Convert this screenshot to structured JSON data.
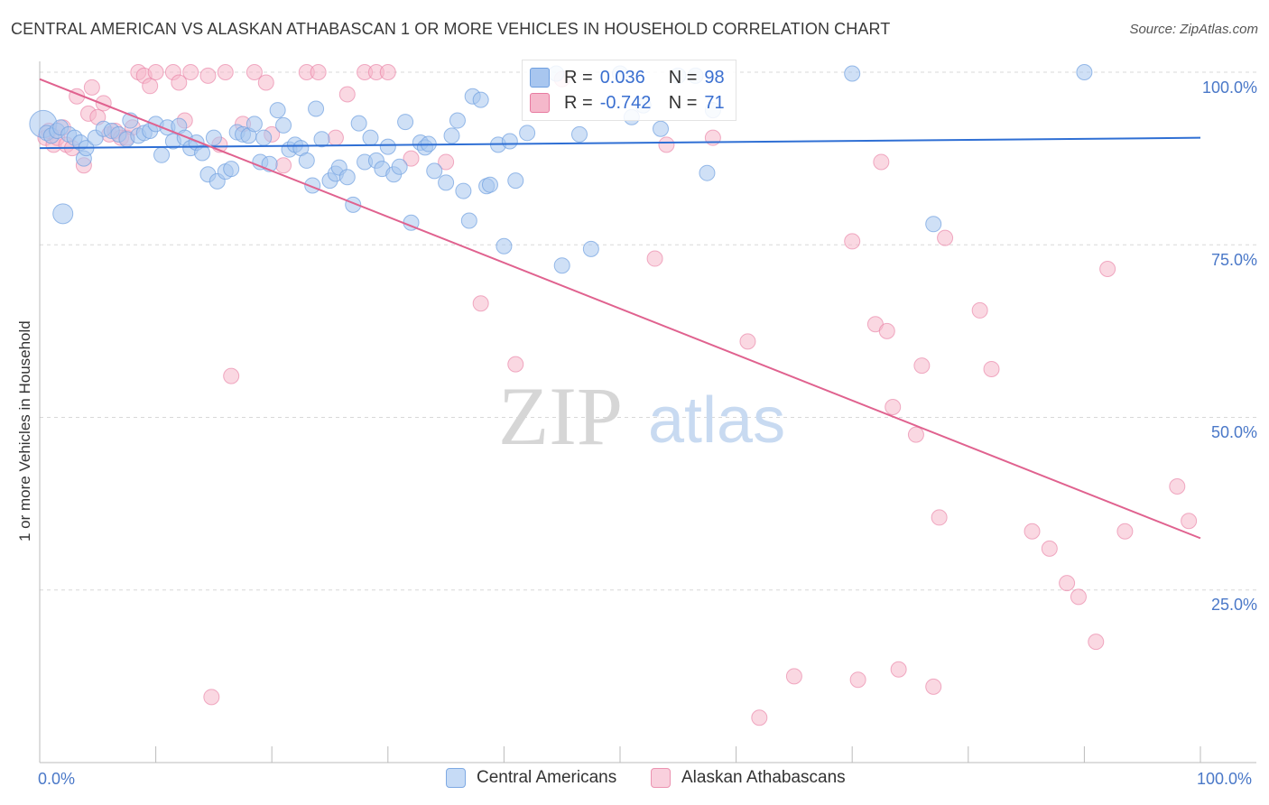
{
  "title": "CENTRAL AMERICAN VS ALASKAN ATHABASCAN 1 OR MORE VEHICLES IN HOUSEHOLD CORRELATION CHART",
  "source": "Source: ZipAtlas.com",
  "watermark": {
    "zip": "ZIP",
    "atlas": "atlas"
  },
  "legend_top": {
    "rows": [
      {
        "r_label": "R =",
        "r_value": "0.036",
        "n_label": "N =",
        "n_value": "98",
        "color": "#a8c6ef"
      },
      {
        "r_label": "R =",
        "r_value": "-0.742",
        "n_label": "N =",
        "n_value": "71",
        "color": "#f5b8cb"
      }
    ]
  },
  "legend_bottom": {
    "items": [
      {
        "label": "Central Americans",
        "color": "#a8c6ef"
      },
      {
        "label": "Alaskan Athabascans",
        "color": "#f5b8cb"
      }
    ]
  },
  "chart_data": {
    "type": "scatter",
    "title": "CENTRAL AMERICAN VS ALASKAN ATHABASCAN 1 OR MORE VEHICLES IN HOUSEHOLD CORRELATION CHART",
    "xlabel": "",
    "ylabel": "1 or more Vehicles in Household",
    "x_ticklabels": [
      "0.0%",
      "100.0%"
    ],
    "y_ticklabels": [
      "100.0%",
      "75.0%",
      "50.0%",
      "25.0%"
    ],
    "xlim": [
      0,
      100
    ],
    "ylim": [
      0,
      100
    ],
    "grid": "horizontal dashed",
    "legend_placement": "bottom-center",
    "series": [
      {
        "name": "Central Americans",
        "color": "#6f9fe0",
        "fill": "#a8c6ef",
        "trend": {
          "x0": 0,
          "y0": 89.0,
          "x1": 100,
          "y1": 90.5
        },
        "points": [
          [
            0.3,
            92.5
          ],
          [
            0.6,
            91.2
          ],
          [
            1.0,
            90.8
          ],
          [
            1.5,
            91.5
          ],
          [
            1.8,
            92.0
          ],
          [
            2.0,
            79.5
          ],
          [
            2.5,
            91.0
          ],
          [
            3.0,
            90.5
          ],
          [
            3.5,
            89.8
          ],
          [
            3.8,
            87.5
          ],
          [
            4.0,
            89.0
          ],
          [
            4.8,
            90.5
          ],
          [
            5.5,
            91.8
          ],
          [
            6.2,
            91.5
          ],
          [
            6.8,
            91.0
          ],
          [
            7.5,
            90.3
          ],
          [
            7.8,
            93.0
          ],
          [
            8.5,
            90.8
          ],
          [
            9.0,
            91.2
          ],
          [
            9.5,
            91.5
          ],
          [
            10.0,
            92.5
          ],
          [
            10.5,
            88.0
          ],
          [
            11.0,
            92.0
          ],
          [
            11.5,
            90.0
          ],
          [
            12.0,
            92.2
          ],
          [
            12.5,
            90.5
          ],
          [
            13.0,
            89.0
          ],
          [
            13.5,
            89.8
          ],
          [
            14.0,
            88.3
          ],
          [
            14.5,
            85.2
          ],
          [
            15.0,
            90.5
          ],
          [
            15.3,
            84.2
          ],
          [
            16.0,
            85.6
          ],
          [
            16.5,
            86.0
          ],
          [
            17.0,
            91.3
          ],
          [
            17.5,
            91.0
          ],
          [
            18.0,
            90.8
          ],
          [
            18.5,
            92.5
          ],
          [
            19.0,
            87.0
          ],
          [
            19.3,
            90.5
          ],
          [
            19.8,
            86.7
          ],
          [
            20.5,
            94.5
          ],
          [
            21.0,
            92.3
          ],
          [
            21.5,
            88.8
          ],
          [
            22.0,
            89.5
          ],
          [
            22.5,
            89.0
          ],
          [
            23.0,
            87.2
          ],
          [
            23.5,
            83.6
          ],
          [
            23.8,
            94.7
          ],
          [
            24.3,
            90.3
          ],
          [
            25.0,
            84.3
          ],
          [
            25.5,
            85.3
          ],
          [
            25.8,
            86.2
          ],
          [
            26.5,
            84.8
          ],
          [
            27.0,
            80.8
          ],
          [
            27.5,
            92.6
          ],
          [
            28.0,
            87.0
          ],
          [
            28.5,
            90.5
          ],
          [
            29.0,
            87.2
          ],
          [
            29.5,
            86.0
          ],
          [
            30.0,
            89.2
          ],
          [
            30.5,
            85.2
          ],
          [
            31.0,
            86.3
          ],
          [
            31.5,
            92.8
          ],
          [
            32.0,
            78.2
          ],
          [
            32.8,
            89.8
          ],
          [
            33.2,
            89.1
          ],
          [
            33.5,
            89.6
          ],
          [
            34.0,
            85.7
          ],
          [
            35.0,
            84.0
          ],
          [
            35.5,
            90.8
          ],
          [
            36.0,
            93.0
          ],
          [
            36.5,
            82.8
          ],
          [
            37.0,
            78.5
          ],
          [
            37.3,
            96.5
          ],
          [
            38.0,
            96.0
          ],
          [
            38.5,
            83.5
          ],
          [
            38.8,
            83.7
          ],
          [
            39.5,
            89.5
          ],
          [
            40.0,
            74.8
          ],
          [
            40.5,
            90.0
          ],
          [
            41.0,
            84.3
          ],
          [
            42.0,
            91.2
          ],
          [
            43.0,
            99.5
          ],
          [
            44.5,
            99.8
          ],
          [
            45.0,
            72.0
          ],
          [
            46.5,
            91.0
          ],
          [
            47.5,
            74.4
          ],
          [
            50.0,
            99.8
          ],
          [
            51.0,
            93.5
          ],
          [
            52.0,
            95.2
          ],
          [
            53.5,
            91.8
          ],
          [
            55.0,
            99.5
          ],
          [
            56.5,
            99.5
          ],
          [
            57.5,
            85.4
          ],
          [
            58.0,
            94.5
          ],
          [
            70.0,
            99.8
          ],
          [
            77.0,
            78.0
          ],
          [
            90.0,
            100.0
          ]
        ]
      },
      {
        "name": "Alaskan Athabascans",
        "color": "#e87aa0",
        "fill": "#f5b8cb",
        "trend": {
          "x0": 0,
          "y0": 99.0,
          "x1": 100,
          "y1": 32.5
        },
        "points": [
          [
            0.5,
            90.5
          ],
          [
            0.8,
            91.5
          ],
          [
            1.2,
            89.5
          ],
          [
            1.5,
            90.5
          ],
          [
            2.0,
            92.0
          ],
          [
            2.3,
            89.5
          ],
          [
            2.8,
            89.0
          ],
          [
            3.2,
            96.5
          ],
          [
            3.8,
            86.5
          ],
          [
            4.2,
            94.0
          ],
          [
            4.5,
            97.8
          ],
          [
            5.0,
            93.5
          ],
          [
            5.5,
            95.5
          ],
          [
            6.0,
            91.0
          ],
          [
            6.5,
            91.5
          ],
          [
            7.0,
            90.5
          ],
          [
            7.5,
            90.5
          ],
          [
            8.0,
            92.0
          ],
          [
            8.5,
            100.0
          ],
          [
            9.0,
            99.5
          ],
          [
            9.5,
            98.0
          ],
          [
            10.0,
            100.0
          ],
          [
            11.5,
            100.0
          ],
          [
            12.0,
            98.5
          ],
          [
            12.5,
            93.0
          ],
          [
            13.0,
            100.0
          ],
          [
            14.5,
            99.5
          ],
          [
            14.8,
            9.5
          ],
          [
            15.5,
            89.5
          ],
          [
            16.0,
            100.0
          ],
          [
            16.5,
            56.0
          ],
          [
            17.5,
            92.5
          ],
          [
            18.5,
            100.0
          ],
          [
            19.5,
            98.5
          ],
          [
            20.0,
            91.0
          ],
          [
            21.0,
            86.5
          ],
          [
            23.0,
            100.0
          ],
          [
            24.0,
            100.0
          ],
          [
            25.5,
            90.5
          ],
          [
            26.5,
            96.8
          ],
          [
            28.0,
            100.0
          ],
          [
            29.0,
            100.0
          ],
          [
            30.0,
            100.0
          ],
          [
            32.0,
            87.5
          ],
          [
            35.0,
            87.0
          ],
          [
            38.0,
            66.5
          ],
          [
            41.0,
            57.7
          ],
          [
            45.0,
            99.0
          ],
          [
            53.0,
            73.0
          ],
          [
            54.0,
            89.5
          ],
          [
            58.0,
            90.5
          ],
          [
            61.0,
            61.0
          ],
          [
            62.0,
            6.5
          ],
          [
            65.0,
            12.5
          ],
          [
            70.0,
            75.5
          ],
          [
            70.5,
            12.0
          ],
          [
            72.0,
            63.5
          ],
          [
            72.5,
            87.0
          ],
          [
            73.0,
            62.5
          ],
          [
            73.5,
            51.5
          ],
          [
            74.0,
            13.5
          ],
          [
            75.5,
            47.5
          ],
          [
            76.0,
            57.5
          ],
          [
            77.0,
            11.0
          ],
          [
            77.5,
            35.5
          ],
          [
            78.0,
            76.0
          ],
          [
            81.0,
            65.5
          ],
          [
            82.0,
            57.0
          ],
          [
            85.5,
            33.5
          ],
          [
            87.0,
            31.0
          ],
          [
            88.5,
            26.0
          ],
          [
            89.5,
            24.0
          ],
          [
            91.0,
            17.5
          ],
          [
            92.0,
            71.5
          ],
          [
            93.5,
            33.5
          ],
          [
            98.0,
            40.0
          ],
          [
            99.0,
            35.0
          ]
        ]
      }
    ]
  }
}
